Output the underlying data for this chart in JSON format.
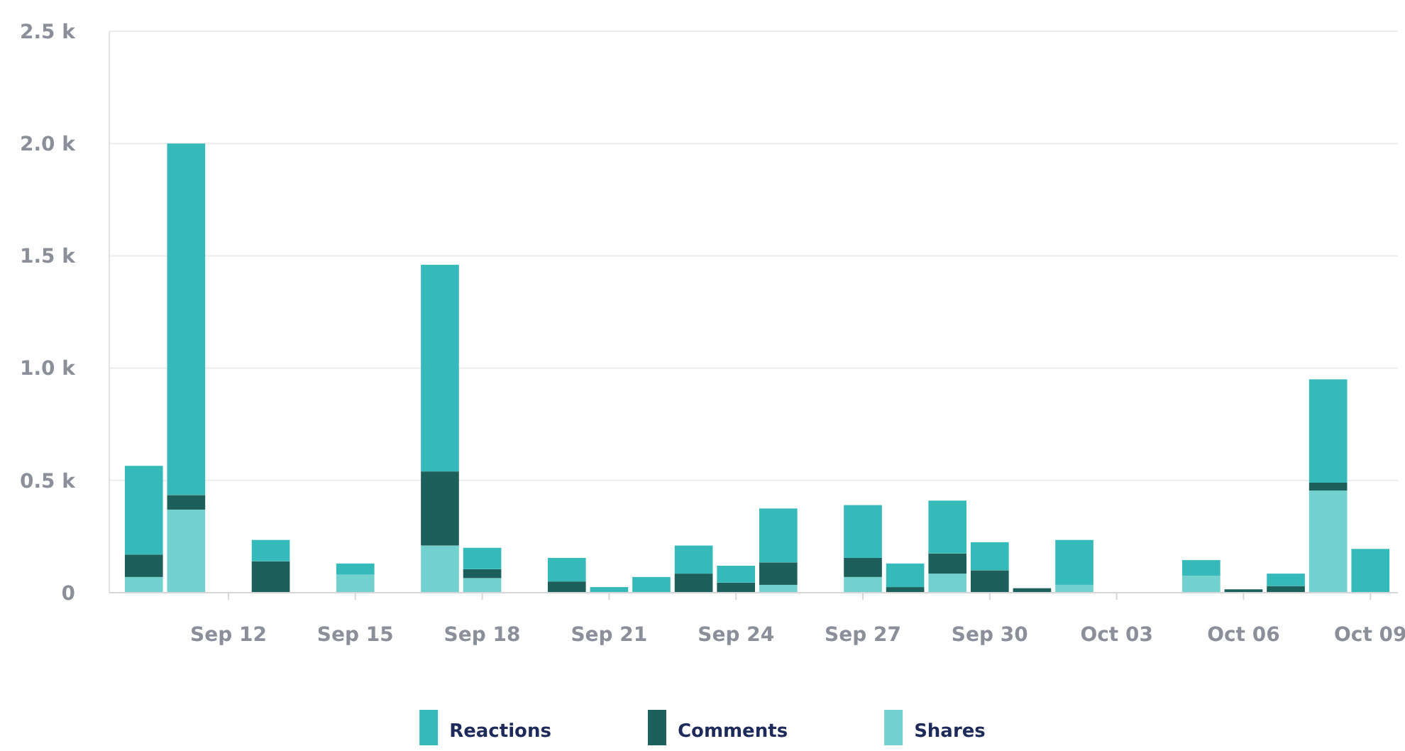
{
  "chart_data": {
    "type": "bar",
    "stacked": true,
    "categories": [
      null,
      null,
      "Sep 12",
      null,
      null,
      "Sep 15",
      null,
      null,
      "Sep 18",
      null,
      null,
      "Sep 21",
      null,
      null,
      "Sep 24",
      null,
      null,
      "Sep 27",
      null,
      null,
      "Sep 30",
      null,
      null,
      "Oct 03",
      null,
      null,
      "Oct 06",
      null,
      null,
      "Oct 09"
    ],
    "series": [
      {
        "name": "Shares",
        "color": "#72d1cf",
        "values": [
          70,
          370,
          null,
          null,
          null,
          80,
          null,
          210,
          65,
          null,
          null,
          null,
          null,
          null,
          null,
          35,
          null,
          70,
          null,
          85,
          null,
          null,
          35,
          null,
          null,
          75,
          null,
          null,
          455,
          null
        ]
      },
      {
        "name": "Comments",
        "color": "#1d5f5b",
        "values": [
          100,
          65,
          null,
          140,
          null,
          null,
          null,
          330,
          40,
          null,
          50,
          null,
          null,
          85,
          45,
          100,
          null,
          85,
          25,
          90,
          100,
          20,
          null,
          null,
          null,
          null,
          15,
          30,
          35,
          null
        ]
      },
      {
        "name": "Reactions",
        "color": "#35b9b9",
        "values": [
          395,
          1565,
          null,
          95,
          null,
          50,
          null,
          920,
          95,
          null,
          105,
          25,
          70,
          125,
          75,
          240,
          null,
          235,
          105,
          235,
          125,
          null,
          200,
          null,
          null,
          70,
          null,
          55,
          460,
          195
        ]
      }
    ],
    "ylim": [
      0,
      2500
    ],
    "yticks": [
      0,
      {
        "value": 500,
        "label": "0.5 k"
      },
      {
        "value": 1000,
        "label": "1.0 k"
      },
      {
        "value": 1500,
        "label": "1.5 k"
      },
      {
        "value": 2000,
        "label": "2.0 k"
      },
      {
        "value": 2500,
        "label": "2.5 k"
      }
    ],
    "grid": "y",
    "legend": "bottom"
  }
}
